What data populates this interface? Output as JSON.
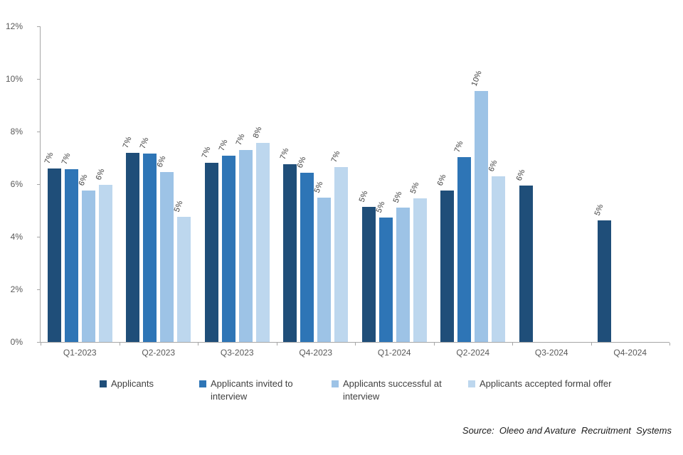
{
  "chart_data": {
    "type": "bar",
    "title": "",
    "xlabel": "",
    "ylabel": "",
    "categories": [
      "Q1-2023",
      "Q2-2023",
      "Q3-2023",
      "Q4-2023",
      "Q1-2024",
      "Q2-2024",
      "Q3-2024",
      "Q4-2024"
    ],
    "series": [
      {
        "name": "Applicants",
        "color": "#1F4E79",
        "values": [
          6.6,
          7.2,
          6.8,
          6.77,
          5.13,
          5.77,
          5.95,
          4.62
        ],
        "labels": [
          "7%",
          "7%",
          "7%",
          "7%",
          "5%",
          "6%",
          "6%",
          "5%"
        ]
      },
      {
        "name": "Applicants invited to interview",
        "color": "#2E75B6",
        "values": [
          6.58,
          7.16,
          7.08,
          6.43,
          4.74,
          7.04,
          null,
          null
        ],
        "labels": [
          "7%",
          "7%",
          "7%",
          "6%",
          "5%",
          "7%",
          null,
          null
        ]
      },
      {
        "name": "Applicants successful at interview",
        "color": "#9DC3E6",
        "values": [
          5.75,
          6.46,
          7.31,
          5.49,
          5.11,
          9.55,
          null,
          null
        ],
        "labels": [
          "6%",
          "6%",
          "7%",
          "5%",
          "5%",
          "10%",
          null,
          null
        ]
      },
      {
        "name": "Applicants accepted formal offer",
        "color": "#BDD7EE",
        "values": [
          5.98,
          4.77,
          7.56,
          6.65,
          5.45,
          6.3,
          null,
          null
        ],
        "labels": [
          "6%",
          "5%",
          "8%",
          "7%",
          "5%",
          "6%",
          null,
          null
        ]
      }
    ],
    "y_axis": {
      "min": 0,
      "max": 12,
      "tick_labels": [
        "0%",
        "2%",
        "4%",
        "6%",
        "8%",
        "10%",
        "12%"
      ]
    },
    "grid": "off",
    "legend_position": "bottom",
    "source_note": "Source:  Oleeo and Avature  Recruitment  Systems"
  },
  "style": {
    "axis_color": "#A6A6A6",
    "tick_label_color": "#595959",
    "data_label_color": "#404040",
    "legend_text_color": "#404040",
    "background": "#FFFFFF"
  }
}
